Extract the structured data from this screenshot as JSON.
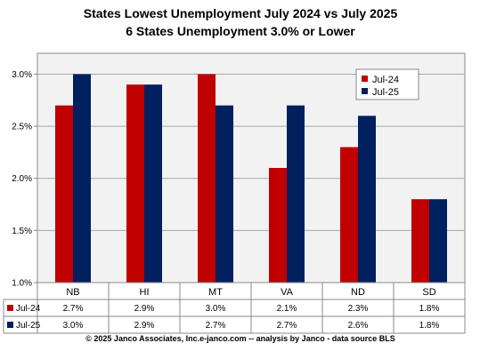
{
  "chart_data": {
    "type": "bar",
    "title": "States Lowest Unemployment July 2024 vs July 2025",
    "subtitle": "6 States  Unemployment 3.0% or Lower",
    "categories": [
      "NB",
      "HI",
      "MT",
      "VA",
      "ND",
      "SD"
    ],
    "series": [
      {
        "name": "Jul-24",
        "values": [
          2.7,
          2.9,
          3.0,
          2.1,
          2.3,
          1.8
        ],
        "labels": [
          "2.7%",
          "2.9%",
          "3.0%",
          "2.1%",
          "2.3%",
          "1.8%"
        ],
        "color": "#c00000"
      },
      {
        "name": "Jul-25",
        "values": [
          3.0,
          2.9,
          2.7,
          2.7,
          2.6,
          1.8
        ],
        "labels": [
          "3.0%",
          "2.9%",
          "2.7%",
          "2.7%",
          "2.6%",
          "1.8%"
        ],
        "color": "#002060"
      }
    ],
    "ylim": [
      1.0,
      3.2
    ],
    "yticks": [
      1.0,
      1.5,
      2.0,
      2.5,
      3.0
    ],
    "ytick_labels": [
      "1.0%",
      "1.5%",
      "2.0%",
      "2.5%",
      "3.0%"
    ],
    "grid": true,
    "legend_position": "top-right",
    "data_table": true,
    "plot_background": "#f2f2f2"
  },
  "footer": "© 2025 Janco Associates, Inc.e-janco.com -- analysis by Janco - data source BLS"
}
